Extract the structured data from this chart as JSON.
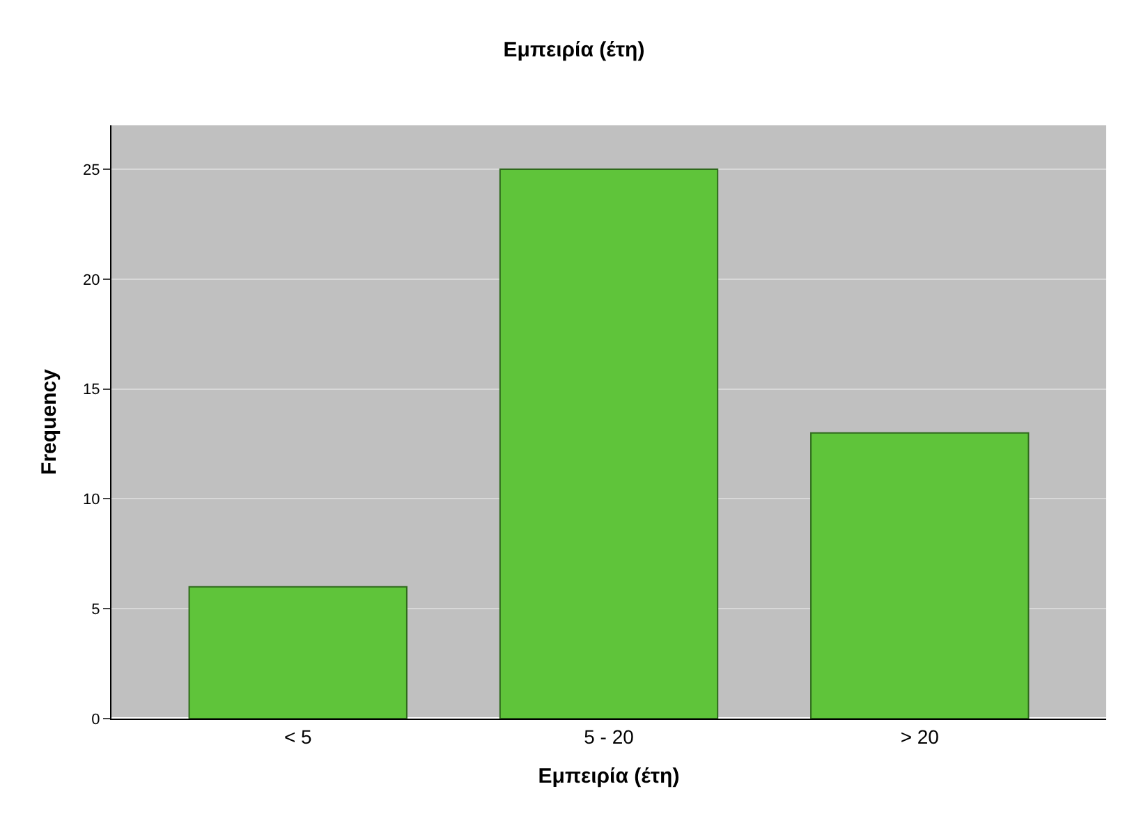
{
  "chart_data": {
    "type": "bar",
    "title": "Εμπειρία (έτη)",
    "xlabel": "Εμπειρία (έτη)",
    "ylabel": "Frequency",
    "categories": [
      "< 5",
      "5 - 20",
      "> 20"
    ],
    "values": [
      6,
      25,
      13
    ],
    "color": "#5fc43a",
    "ylim": [
      0,
      27
    ],
    "yticks": [
      0,
      5,
      10,
      15,
      20,
      25
    ],
    "grid": "y"
  }
}
